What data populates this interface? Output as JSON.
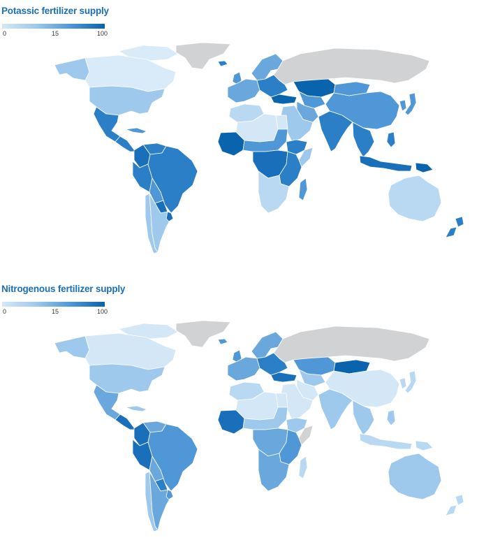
{
  "maps": [
    {
      "title": "Potassic fertilizer supply",
      "legend": {
        "ticks": [
          "0",
          "15",
          "100"
        ],
        "colors": [
          "#d4e7f7",
          "#9ec9ec",
          "#4f97d6",
          "#0a63ad"
        ]
      },
      "no_data_color": "#d0d2d3",
      "region_colors": {
        "greenland": "#d0d2d3",
        "russia": "#d0d2d3",
        "alaska": "#9ec9ec",
        "canada": "#d9ebf8",
        "usa": "#9ec9ec",
        "mexico": "#2b7fc6",
        "central_america": "#2b7fc6",
        "caribbean": "#4f97d6",
        "colombia": "#1a6fbb",
        "venezuela": "#2b7fc6",
        "peru": "#2b7fc6",
        "brazil": "#2b7fc6",
        "bolivia": "#4f97d6",
        "paraguay": "#1a6fbb",
        "argentina": "#9ec9ec",
        "chile": "#9ec9ec",
        "uruguay": "#1a6fbb",
        "iceland": "#2b7fc6",
        "scandinavia": "#6aa7dd",
        "uk": "#4f97d6",
        "western_europe": "#6aa7dd",
        "eastern_europe": "#2b7fc6",
        "turkey": "#0a63ad",
        "maghreb": "#b9d9f2",
        "sahara": "#d4e7f7",
        "west_africa": "#0a63ad",
        "sahel": "#4f97d6",
        "egypt": "#d4e7f7",
        "horn_of_africa": "#2b7fc6",
        "somalia": "#9ec9ec",
        "central_africa": "#1a6fbb",
        "east_africa": "#2b7fc6",
        "southern_africa": "#b9d9f2",
        "madagascar": "#4f97d6",
        "arabia": "#9ec9ec",
        "iran": "#6aa7dd",
        "kazakhstan": "#0a63ad",
        "central_asia": "#4f97d6",
        "china": "#4f97d6",
        "mongolia": "#4f97d6",
        "india": "#2b7fc6",
        "southeast_asia": "#2b7fc6",
        "indonesia": "#1a6fbb",
        "philippines": "#2b7fc6",
        "japan": "#4f97d6",
        "korea": "#4f97d6",
        "papua": "#0a63ad",
        "australia": "#b9d9f2",
        "new_zealand": "#2b7fc6"
      }
    },
    {
      "title": "Nitrogenous fertilizer supply",
      "legend": {
        "ticks": [
          "0",
          "15",
          "100"
        ],
        "colors": [
          "#d4e7f7",
          "#9ec9ec",
          "#4f97d6",
          "#0a63ad"
        ]
      },
      "no_data_color": "#d0d2d3",
      "region_colors": {
        "greenland": "#d0d2d3",
        "russia": "#d0d2d3",
        "alaska": "#9ec9ec",
        "canada": "#d4e7f7",
        "usa": "#9ec9ec",
        "mexico": "#6aa7dd",
        "central_america": "#1a6fbb",
        "caribbean": "#9ec9ec",
        "colombia": "#1a6fbb",
        "venezuela": "#6aa7dd",
        "peru": "#1a6fbb",
        "brazil": "#4f97d6",
        "bolivia": "#6aa7dd",
        "paraguay": "#2b7fc6",
        "argentina": "#6aa7dd",
        "chile": "#9ec9ec",
        "uruguay": "#4f97d6",
        "iceland": "#4f97d6",
        "scandinavia": "#6aa7dd",
        "uk": "#4f97d6",
        "western_europe": "#6aa7dd",
        "eastern_europe": "#2b7fc6",
        "turkey": "#1a6fbb",
        "maghreb": "#b9d9f2",
        "sahara": "#d4e7f7",
        "west_africa": "#1a6fbb",
        "sahel": "#9ec9ec",
        "egypt": "#d4e7f7",
        "horn_of_africa": "#9ec9ec",
        "somalia": "#d0d2d3",
        "central_africa": "#6aa7dd",
        "east_africa": "#4f97d6",
        "southern_africa": "#6aa7dd",
        "madagascar": "#b9d9f2",
        "arabia": "#d4e7f7",
        "iran": "#d4e7f7",
        "kazakhstan": "#4f97d6",
        "central_asia": "#9ec9ec",
        "china": "#d4e7f7",
        "mongolia": "#0a63ad",
        "india": "#9ec9ec",
        "southeast_asia": "#9ec9ec",
        "indonesia": "#b9d9f2",
        "philippines": "#9ec9ec",
        "japan": "#b9d9f2",
        "korea": "#b9d9f2",
        "papua": "#b9d9f2",
        "australia": "#9ec9ec",
        "new_zealand": "#b9d9f2"
      }
    }
  ]
}
